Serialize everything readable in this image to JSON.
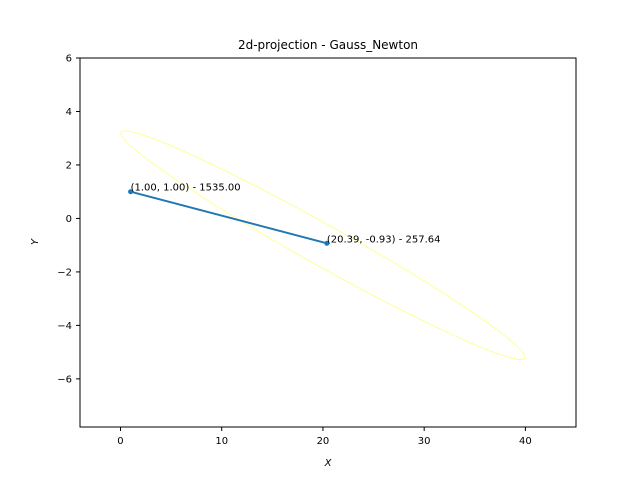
{
  "chart_data": {
    "type": "line",
    "title": "2d-projection - Gauss_Newton",
    "xlabel": "X",
    "ylabel": "Y",
    "xlim": [
      -4,
      45
    ],
    "ylim": [
      -7.8,
      6
    ],
    "xticks": [
      0,
      10,
      20,
      30,
      40
    ],
    "yticks": [
      6,
      4,
      2,
      0,
      -2,
      -4,
      -6
    ],
    "grid": false,
    "legend": "none",
    "series": [
      {
        "color": "#1f77b4",
        "x": [
          1.0,
          20.39
        ],
        "y": [
          1.0,
          -0.93
        ],
        "marker": "circle"
      }
    ],
    "annotations": [
      {
        "x": 1.0,
        "y": 1.0,
        "text": "(1.00, 1.00) - 1535.00"
      },
      {
        "x": 20.39,
        "y": -0.93,
        "text": "(20.39, -0.93) - 257.64"
      }
    ],
    "contour": {
      "color": "#ffff99",
      "center": [
        20.0,
        -1.0
      ],
      "semi_axis_major": 20.4,
      "semi_axis_minor": 0.85,
      "slope": -0.21
    }
  }
}
